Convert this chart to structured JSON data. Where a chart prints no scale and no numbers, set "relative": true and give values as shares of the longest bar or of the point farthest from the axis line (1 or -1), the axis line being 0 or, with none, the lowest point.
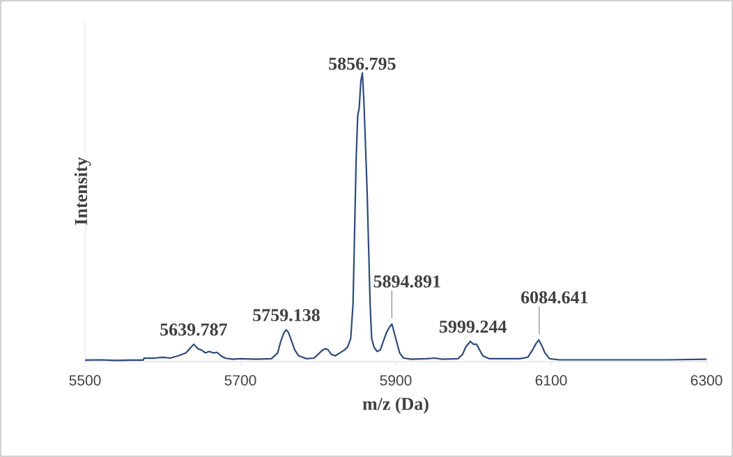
{
  "chart_data": {
    "type": "line",
    "xlabel": "m/z (Da)",
    "ylabel": "Intensity",
    "relative": true,
    "xlim": [
      5500,
      6300
    ],
    "xticks": [
      5500,
      5700,
      5900,
      6100,
      6300
    ],
    "marker": "none",
    "line_style": "solid",
    "x": [
      5500,
      5520,
      5540,
      5560,
      5575,
      5576,
      5590,
      5600,
      5610,
      5620,
      5630,
      5635,
      5640,
      5645,
      5650,
      5655,
      5660,
      5665,
      5670,
      5675,
      5680,
      5690,
      5700,
      5720,
      5740,
      5748,
      5752,
      5756,
      5759,
      5762,
      5766,
      5770,
      5775,
      5785,
      5795,
      5802,
      5806,
      5810,
      5813,
      5817,
      5822,
      5828,
      5834,
      5838,
      5842,
      5845,
      5847,
      5849,
      5851,
      5853,
      5855,
      5857,
      5859,
      5861,
      5863,
      5865,
      5867,
      5869,
      5872,
      5876,
      5880,
      5884,
      5888,
      5892,
      5895,
      5898,
      5901,
      5905,
      5910,
      5920,
      5940,
      5950,
      5960,
      5980,
      5986,
      5990,
      5996,
      6000,
      6004,
      6008,
      6012,
      6020,
      6040,
      6060,
      6070,
      6076,
      6080,
      6084,
      6088,
      6092,
      6098,
      6110,
      6150,
      6200,
      6250,
      6300
    ],
    "series": [
      {
        "color": "#2e4a7a",
        "values": [
          0.005,
          0.006,
          0.004,
          0.005,
          0.005,
          0.012,
          0.012,
          0.015,
          0.012,
          0.02,
          0.03,
          0.045,
          0.06,
          0.045,
          0.04,
          0.03,
          0.035,
          0.03,
          0.032,
          0.02,
          0.012,
          0.008,
          0.01,
          0.008,
          0.01,
          0.03,
          0.07,
          0.1,
          0.11,
          0.1,
          0.07,
          0.04,
          0.02,
          0.01,
          0.012,
          0.03,
          0.04,
          0.045,
          0.04,
          0.025,
          0.02,
          0.03,
          0.04,
          0.05,
          0.08,
          0.2,
          0.45,
          0.7,
          0.85,
          0.88,
          0.97,
          1.0,
          0.9,
          0.75,
          0.6,
          0.4,
          0.2,
          0.08,
          0.05,
          0.035,
          0.04,
          0.07,
          0.1,
          0.12,
          0.13,
          0.1,
          0.07,
          0.03,
          0.012,
          0.008,
          0.01,
          0.012,
          0.008,
          0.01,
          0.025,
          0.05,
          0.07,
          0.06,
          0.06,
          0.04,
          0.02,
          0.01,
          0.01,
          0.01,
          0.015,
          0.04,
          0.06,
          0.075,
          0.055,
          0.03,
          0.01,
          0.006,
          0.006,
          0.006,
          0.006,
          0.008
        ]
      }
    ],
    "annotations": [
      {
        "text": "5639.787",
        "x": 5639.787,
        "y": 0.06
      },
      {
        "text": "5759.138",
        "x": 5759.138,
        "y": 0.11
      },
      {
        "text": "5856.795",
        "x": 5856.795,
        "y": 1.0
      },
      {
        "text": "5894.891",
        "x": 5894.891,
        "y": 0.13
      },
      {
        "text": "5999.244",
        "x": 5999.244,
        "y": 0.07
      },
      {
        "text": "6084.641",
        "x": 6084.641,
        "y": 0.075
      }
    ]
  }
}
